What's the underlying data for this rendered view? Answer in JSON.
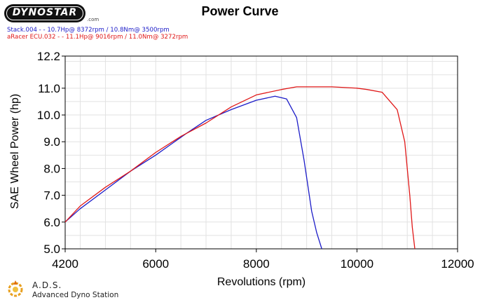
{
  "logo": {
    "text": "DYNOSTAR",
    "suffix": ".com"
  },
  "chart_data": {
    "type": "line",
    "title": "Power Curve",
    "xlabel": "Revolutions (rpm)",
    "ylabel": "SAE Wheel Power (hp)",
    "xlim": [
      4200,
      12000
    ],
    "ylim": [
      5.0,
      12.2
    ],
    "x_ticks": [
      "4200",
      "6000",
      "8000",
      "10000",
      "12000"
    ],
    "y_ticks": [
      "5.0",
      "6.0",
      "7.0",
      "8.0",
      "9.0",
      "10.0",
      "11.0",
      "12.2"
    ],
    "grid": true,
    "legend": [
      "Stack.004 - - 10.7Hp@ 8372rpm / 10.8Nm@ 3500rpm",
      "aRacer ECU.032 - - 11.1Hp@ 9016rpm / 11.0Nm@ 3272rpm"
    ],
    "series": [
      {
        "name": "Stack.004",
        "color": "#1c1cc8",
        "x": [
          4200,
          4500,
          5000,
          5500,
          6000,
          6300,
          6600,
          7000,
          7500,
          8000,
          8372,
          8600,
          8800,
          8950,
          9100,
          9200,
          9300
        ],
        "y": [
          6.0,
          6.5,
          7.2,
          7.9,
          8.5,
          8.9,
          9.3,
          9.8,
          10.2,
          10.55,
          10.7,
          10.6,
          9.9,
          8.3,
          6.4,
          5.6,
          5.0
        ]
      },
      {
        "name": "aRacer ECU.032",
        "color": "#e01818",
        "x": [
          4200,
          4500,
          5000,
          5500,
          6000,
          6500,
          7000,
          7500,
          8000,
          8500,
          8800,
          9016,
          9500,
          10000,
          10200,
          10500,
          10800,
          10950,
          11050,
          11100,
          11150
        ],
        "y": [
          6.0,
          6.6,
          7.3,
          7.9,
          8.6,
          9.2,
          9.7,
          10.3,
          10.75,
          10.95,
          11.05,
          11.05,
          11.05,
          11.0,
          10.95,
          10.85,
          10.2,
          9.0,
          7.0,
          5.8,
          5.0
        ]
      }
    ]
  },
  "footer": {
    "brand": "A.D.S.",
    "subtitle": "Advanced Dyno Station"
  }
}
